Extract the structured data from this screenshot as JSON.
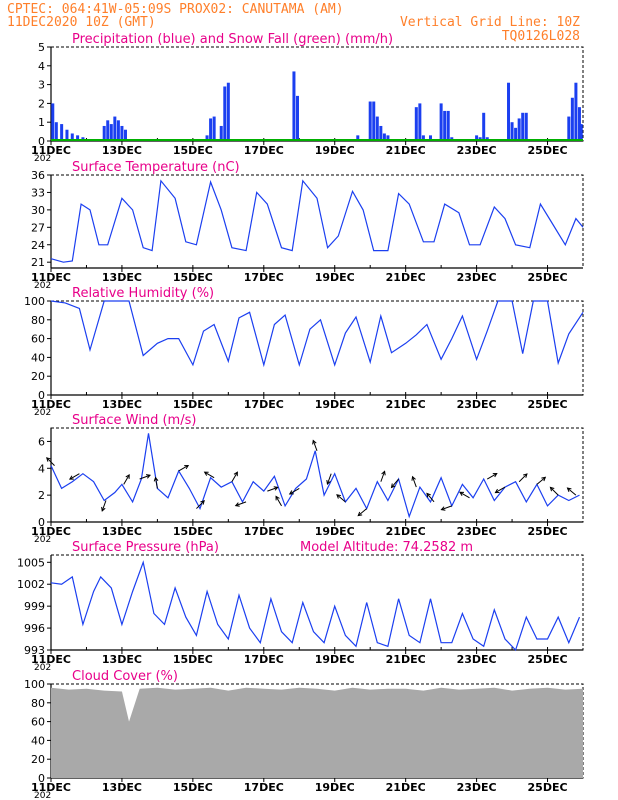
{
  "header": {
    "line1": "CPTEC:   064:41W-05:09S   PROX02: CANUTAMA (AM)",
    "line2_left": "11DEC2020 10Z (GMT)",
    "line2_right": "Vertical Grid Line: 10Z",
    "code": "TQ0126L028"
  },
  "colors": {
    "title": "#e8008a",
    "header": "#ff7f2a",
    "line": "#1b3ff0",
    "snow": "#00b000",
    "cloud": "#a9a9a9",
    "axis": "#000000",
    "grid": "#bdbdbd"
  },
  "x_axis": {
    "ticks": [
      "11DEC",
      "13DEC",
      "15DEC",
      "17DEC",
      "19DEC",
      "21DEC",
      "23DEC",
      "25DEC"
    ],
    "year_label": "202",
    "range_days": [
      0,
      15
    ]
  },
  "chart_data": [
    {
      "id": "precip",
      "type": "bar",
      "title": "Precipitation (blue) and Snow Fall (green) (mm/h)",
      "ylim": [
        0,
        5
      ],
      "yticks": [
        "0",
        "1",
        "2",
        "3",
        "4",
        "5"
      ],
      "series": [
        {
          "name": "Precipitation",
          "color": "#1b3ff0",
          "x_days": [
            0.05,
            0.15,
            0.3,
            0.45,
            0.6,
            0.75,
            0.9,
            1.5,
            1.6,
            1.7,
            1.8,
            1.9,
            2.0,
            2.1,
            4.4,
            4.5,
            4.6,
            4.8,
            4.9,
            5.0,
            6.85,
            6.95,
            8.65,
            9.0,
            9.1,
            9.2,
            9.3,
            9.4,
            9.5,
            10.3,
            10.4,
            10.5,
            10.6,
            10.7,
            11.0,
            11.1,
            11.2,
            11.3,
            12.0,
            12.1,
            12.2,
            12.3,
            12.9,
            13.0,
            13.1,
            13.2,
            13.3,
            13.4,
            14.6,
            14.7,
            14.8,
            14.9,
            14.95
          ],
          "values": [
            2.0,
            1.0,
            0.9,
            0.6,
            0.4,
            0.3,
            0.2,
            0.8,
            1.1,
            0.9,
            1.3,
            1.1,
            0.8,
            0.6,
            0.3,
            1.2,
            1.3,
            0.8,
            2.9,
            3.1,
            3.7,
            2.4,
            0.3,
            2.1,
            2.1,
            1.3,
            0.8,
            0.4,
            0.3,
            1.8,
            2.0,
            0.3,
            0.1,
            0.3,
            2.0,
            1.6,
            1.6,
            0.2,
            0.3,
            0.2,
            1.5,
            0.2,
            3.1,
            1.0,
            0.7,
            1.2,
            1.5,
            1.5,
            1.3,
            2.3,
            3.1,
            1.8,
            0.9
          ]
        },
        {
          "name": "Snow Fall",
          "color": "#00b000",
          "x_days": [
            0,
            15
          ],
          "values": [
            0,
            0
          ]
        }
      ]
    },
    {
      "id": "temp",
      "type": "line",
      "title": "Surface Temperature (nC)",
      "ylim": [
        20,
        36
      ],
      "yticks": [
        "21",
        "24",
        "27",
        "30",
        "33",
        "36"
      ],
      "series": [
        {
          "name": "Surface Temperature",
          "x_days": [
            0,
            0.35,
            0.6,
            0.85,
            1.1,
            1.35,
            1.6,
            2.0,
            2.3,
            2.6,
            2.85,
            3.1,
            3.5,
            3.8,
            4.1,
            4.5,
            4.8,
            5.1,
            5.5,
            5.8,
            6.1,
            6.5,
            6.8,
            7.1,
            7.5,
            7.8,
            8.1,
            8.5,
            8.8,
            9.1,
            9.5,
            9.8,
            10.1,
            10.5,
            10.8,
            11.1,
            11.5,
            11.8,
            12.1,
            12.5,
            12.8,
            13.1,
            13.5,
            13.8,
            14.1,
            14.5,
            14.8,
            15.0
          ],
          "values": [
            21.6,
            21.0,
            21.2,
            31.0,
            30.0,
            24.0,
            24.0,
            32.0,
            30.0,
            23.5,
            23.0,
            35.0,
            32.0,
            24.5,
            24.0,
            34.8,
            30.0,
            23.5,
            23.0,
            33.0,
            31.0,
            23.5,
            23.0,
            35.0,
            32.0,
            23.5,
            25.5,
            33.2,
            30.0,
            23.0,
            23.0,
            32.8,
            31.0,
            24.5,
            24.5,
            31.0,
            29.5,
            24.0,
            24.0,
            30.5,
            28.5,
            24.0,
            23.5,
            31.0,
            28.0,
            24.0,
            28.5,
            27.0
          ]
        }
      ]
    },
    {
      "id": "rh",
      "type": "line",
      "title": "Relative Humidity (%)",
      "ylim": [
        0,
        100
      ],
      "yticks": [
        "0",
        "20",
        "40",
        "60",
        "80",
        "100"
      ],
      "series": [
        {
          "name": "Relative Humidity",
          "x_days": [
            0,
            0.4,
            0.8,
            1.1,
            1.5,
            1.9,
            2.2,
            2.6,
            3.0,
            3.3,
            3.6,
            4.0,
            4.3,
            4.6,
            5.0,
            5.3,
            5.6,
            6.0,
            6.3,
            6.6,
            7.0,
            7.3,
            7.6,
            8.0,
            8.3,
            8.6,
            9.0,
            9.3,
            9.6,
            10.0,
            10.3,
            10.6,
            11.0,
            11.3,
            11.6,
            12.0,
            12.3,
            12.6,
            13.0,
            13.3,
            13.6,
            14.0,
            14.3,
            14.6,
            15.0
          ],
          "values": [
            100,
            98,
            92,
            48,
            100,
            100,
            100,
            42,
            55,
            60,
            60,
            32,
            68,
            75,
            36,
            82,
            88,
            32,
            75,
            85,
            32,
            70,
            80,
            32,
            66,
            83,
            35,
            84,
            45,
            55,
            64,
            75,
            38,
            60,
            84,
            38,
            68,
            100,
            100,
            44,
            100,
            100,
            34,
            65,
            88
          ]
        }
      ]
    },
    {
      "id": "wind",
      "type": "line",
      "title": "Surface Wind (m/s)",
      "ylim": [
        0,
        7
      ],
      "yticks": [
        "0",
        "2",
        "4",
        "6"
      ],
      "series": [
        {
          "name": "Surface Wind",
          "x_days": [
            0,
            0.3,
            0.6,
            0.9,
            1.2,
            1.5,
            1.8,
            2.0,
            2.3,
            2.55,
            2.75,
            3.0,
            3.3,
            3.6,
            3.9,
            4.2,
            4.5,
            4.8,
            5.1,
            5.4,
            5.7,
            6.0,
            6.3,
            6.6,
            6.9,
            7.2,
            7.45,
            7.7,
            8.0,
            8.3,
            8.6,
            8.9,
            9.2,
            9.5,
            9.8,
            10.1,
            10.4,
            10.7,
            11.0,
            11.3,
            11.6,
            11.9,
            12.2,
            12.5,
            12.8,
            13.1,
            13.4,
            13.7,
            14.0,
            14.3,
            14.6,
            14.9
          ],
          "values": [
            4.2,
            2.5,
            3.0,
            3.6,
            3.0,
            1.6,
            2.2,
            2.8,
            1.5,
            3.2,
            6.6,
            2.5,
            1.8,
            3.8,
            2.5,
            1.0,
            3.3,
            2.6,
            3.0,
            1.5,
            3.0,
            2.3,
            3.4,
            1.2,
            2.5,
            3.2,
            5.3,
            2.0,
            3.6,
            1.5,
            2.5,
            1.0,
            3.0,
            1.6,
            3.2,
            0.4,
            2.6,
            1.5,
            3.3,
            1.2,
            2.8,
            1.8,
            3.2,
            1.6,
            2.6,
            3.0,
            1.5,
            2.8,
            1.2,
            2.0,
            1.6,
            2.0
          ]
        }
      ],
      "arrows": {
        "x_days": [
          0.1,
          0.8,
          1.55,
          2.05,
          2.5,
          3.0,
          3.6,
          4.1,
          4.6,
          5.1,
          5.5,
          6.1,
          6.5,
          7.0,
          7.5,
          7.9,
          8.3,
          8.9,
          9.3,
          9.8,
          10.3,
          10.8,
          11.3,
          11.8,
          12.3,
          12.8,
          13.2,
          13.7,
          14.3,
          14.8
        ],
        "dir_deg": [
          135,
          210,
          250,
          60,
          20,
          100,
          30,
          45,
          150,
          60,
          200,
          20,
          120,
          210,
          110,
          250,
          140,
          220,
          70,
          230,
          110,
          130,
          200,
          150,
          30,
          210,
          45,
          40,
          135,
          140
        ]
      }
    },
    {
      "id": "pres",
      "type": "line",
      "title": "Surface Pressure (hPa)",
      "annotation": "Model Altitude: 74.2582 m",
      "ylim": [
        993,
        1006
      ],
      "yticks": [
        "993",
        "996",
        "999",
        "1002",
        "1005"
      ],
      "series": [
        {
          "name": "Surface Pressure",
          "x_days": [
            0,
            0.3,
            0.6,
            0.9,
            1.2,
            1.4,
            1.7,
            2.0,
            2.3,
            2.6,
            2.9,
            3.2,
            3.5,
            3.8,
            4.1,
            4.4,
            4.7,
            5.0,
            5.3,
            5.6,
            5.9,
            6.2,
            6.5,
            6.8,
            7.1,
            7.4,
            7.7,
            8.0,
            8.3,
            8.6,
            8.9,
            9.2,
            9.5,
            9.8,
            10.1,
            10.4,
            10.7,
            11.0,
            11.3,
            11.6,
            11.9,
            12.2,
            12.5,
            12.8,
            13.1,
            13.4,
            13.7,
            14.0,
            14.3,
            14.6,
            14.9
          ],
          "values": [
            1002.2,
            1002.0,
            1003.0,
            996.5,
            1001.0,
            1003.0,
            1001.5,
            996.5,
            1001.0,
            1005.0,
            998.0,
            996.5,
            1001.5,
            997.5,
            995.0,
            1001.0,
            996.5,
            994.5,
            1000.5,
            996.0,
            994.0,
            1000.0,
            995.5,
            994.0,
            999.5,
            995.5,
            994.0,
            999.0,
            995.0,
            993.5,
            999.5,
            994.0,
            993.5,
            1000.0,
            995.0,
            994.0,
            1000.0,
            994.0,
            994.0,
            998.0,
            994.5,
            993.5,
            998.5,
            994.5,
            993.0,
            997.5,
            994.5,
            994.5,
            997.5,
            994.0,
            997.5
          ]
        }
      ]
    },
    {
      "id": "cloud",
      "type": "area",
      "title": "Cloud Cover (%)",
      "ylim": [
        0,
        100
      ],
      "yticks": [
        "0",
        "20",
        "40",
        "60",
        "80",
        "100"
      ],
      "series": [
        {
          "name": "Cloud Cover",
          "x_days": [
            0,
            0.5,
            1.0,
            1.5,
            2.0,
            2.2,
            2.5,
            3.0,
            3.5,
            4.0,
            4.5,
            5.0,
            5.5,
            6.0,
            6.5,
            7.0,
            7.5,
            8.0,
            8.5,
            9.0,
            9.5,
            10.0,
            10.5,
            11.0,
            11.5,
            12.0,
            12.5,
            13.0,
            13.5,
            14.0,
            14.5,
            15.0
          ],
          "values": [
            96,
            94,
            95,
            93,
            92,
            60,
            95,
            96,
            94,
            95,
            96,
            93,
            96,
            95,
            94,
            96,
            95,
            93,
            96,
            94,
            95,
            95,
            93,
            96,
            94,
            95,
            96,
            93,
            95,
            96,
            94,
            95
          ]
        }
      ]
    }
  ]
}
